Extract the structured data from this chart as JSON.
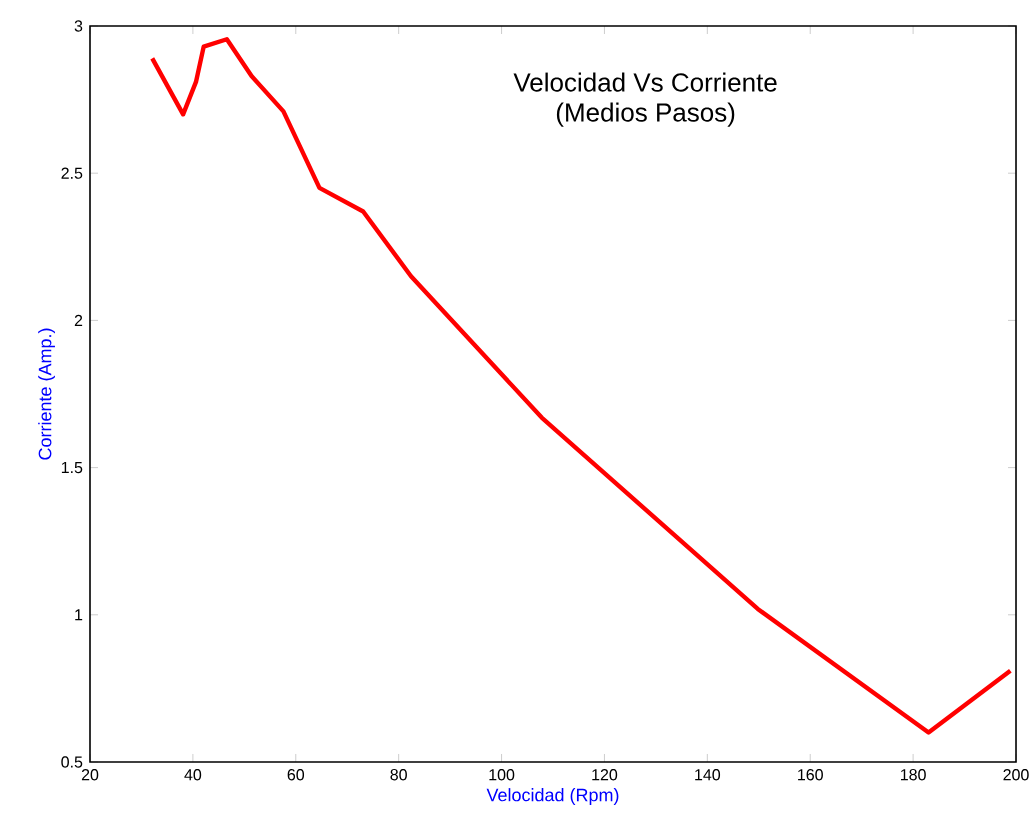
{
  "chart_data": {
    "type": "line",
    "title": "Velocidad Vs Corriente\n(Medios Pasos)",
    "xlabel": "Velocidad (Rpm)",
    "ylabel": "Corriente (Amp.)",
    "x": [
      32.1,
      38.1,
      40.6,
      42.1,
      46.6,
      51.4,
      57.6,
      64.6,
      73.1,
      82.4,
      107.8,
      149.8,
      183,
      198.9
    ],
    "series": [
      {
        "color": "#ff0000",
        "values": [
          2.89,
          2.7,
          2.81,
          2.93,
          2.955,
          2.83,
          2.71,
          2.45,
          2.37,
          2.15,
          1.67,
          1.02,
          0.6,
          0.81
        ]
      }
    ],
    "xlim": [
      20,
      200
    ],
    "ylim": [
      0.5,
      3
    ],
    "xticks": [
      20,
      40,
      60,
      80,
      100,
      120,
      140,
      160,
      180,
      200
    ],
    "yticks": [
      0.5,
      1,
      1.5,
      2,
      2.5,
      3
    ],
    "grid": false,
    "marker": "none",
    "line_style": "solid"
  }
}
